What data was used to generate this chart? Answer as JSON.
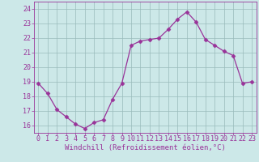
{
  "x": [
    0,
    1,
    2,
    3,
    4,
    5,
    6,
    7,
    8,
    9,
    10,
    11,
    12,
    13,
    14,
    15,
    16,
    17,
    18,
    19,
    20,
    21,
    22,
    23
  ],
  "y": [
    18.9,
    18.2,
    17.1,
    16.6,
    16.1,
    15.8,
    16.2,
    16.4,
    17.8,
    18.9,
    21.5,
    21.8,
    21.9,
    22.0,
    22.6,
    23.3,
    23.8,
    23.1,
    21.9,
    21.5,
    21.1,
    20.8,
    18.9,
    19.0
  ],
  "line_color": "#993399",
  "marker": "D",
  "marker_size": 2.5,
  "bg_color": "#cce8e8",
  "grid_color": "#99bbbb",
  "axis_color": "#993399",
  "xlabel": "Windchill (Refroidissement éolien,°C)",
  "ylabel": "",
  "xlim": [
    -0.5,
    23.5
  ],
  "ylim": [
    15.5,
    24.5
  ],
  "yticks": [
    16,
    17,
    18,
    19,
    20,
    21,
    22,
    23,
    24
  ],
  "xticks": [
    0,
    1,
    2,
    3,
    4,
    5,
    6,
    7,
    8,
    9,
    10,
    11,
    12,
    13,
    14,
    15,
    16,
    17,
    18,
    19,
    20,
    21,
    22,
    23
  ],
  "tick_fontsize": 6,
  "label_fontsize": 6.5
}
